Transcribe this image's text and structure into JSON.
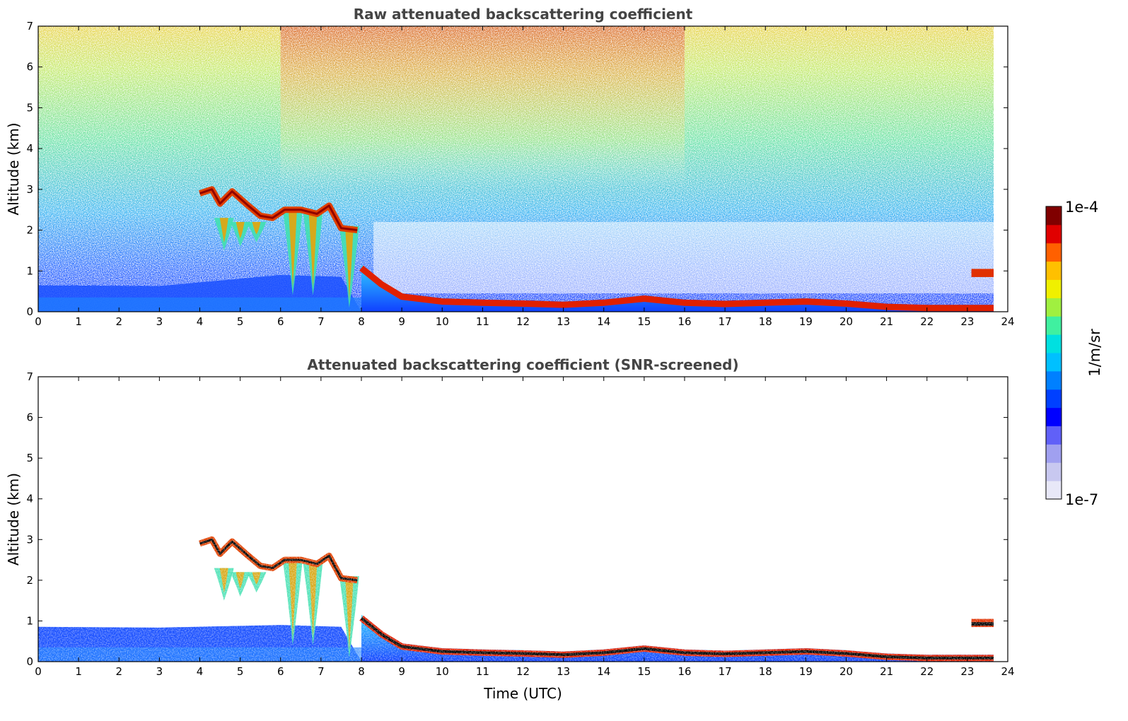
{
  "chart_data": [
    {
      "type": "heatmap",
      "title": "Raw attenuated backscattering coefficient",
      "xlabel": "",
      "ylabel": "Altitude (km)",
      "xlim": [
        0,
        24
      ],
      "ylim": [
        0,
        7
      ],
      "xticks": [
        0,
        1,
        2,
        3,
        4,
        5,
        6,
        7,
        8,
        9,
        10,
        11,
        12,
        13,
        14,
        15,
        16,
        17,
        18,
        19,
        20,
        21,
        22,
        23,
        24
      ],
      "yticks": [
        0,
        1,
        2,
        3,
        4,
        5,
        6,
        7
      ],
      "screened": false,
      "features": {
        "boundary_layer_top_km": [
          [
            8.0,
            1.15
          ],
          [
            8.5,
            0.75
          ],
          [
            9.0,
            0.45
          ],
          [
            10,
            0.33
          ],
          [
            11,
            0.3
          ],
          [
            12,
            0.28
          ],
          [
            13,
            0.25
          ],
          [
            14,
            0.3
          ],
          [
            15,
            0.4
          ],
          [
            16,
            0.3
          ],
          [
            17,
            0.27
          ],
          [
            18,
            0.3
          ],
          [
            19,
            0.33
          ],
          [
            20,
            0.28
          ],
          [
            21,
            0.2
          ],
          [
            22,
            0.17
          ],
          [
            23,
            0.17
          ],
          [
            23.65,
            0.17
          ]
        ],
        "aerosol_layer": {
          "x_start": 0,
          "x_end": 8,
          "top_km": 0.9
        },
        "cloud_layer_km": [
          [
            4.0,
            2.9
          ],
          [
            4.3,
            3.0
          ],
          [
            4.5,
            2.65
          ],
          [
            4.8,
            2.95
          ],
          [
            5.2,
            2.6
          ],
          [
            5.5,
            2.35
          ],
          [
            5.8,
            2.3
          ],
          [
            6.1,
            2.5
          ],
          [
            6.5,
            2.5
          ],
          [
            6.9,
            2.4
          ],
          [
            7.2,
            2.6
          ],
          [
            7.5,
            2.05
          ],
          [
            7.9,
            2.0
          ]
        ],
        "fall_streaks": [
          {
            "x": 4.6,
            "top": 2.3,
            "bottom": 1.5
          },
          {
            "x": 5.0,
            "top": 2.2,
            "bottom": 1.6
          },
          {
            "x": 5.4,
            "top": 2.2,
            "bottom": 1.7
          },
          {
            "x": 6.3,
            "top": 2.5,
            "bottom": 0.4
          },
          {
            "x": 6.8,
            "top": 2.45,
            "bottom": 0.4
          },
          {
            "x": 7.7,
            "top": 2.1,
            "bottom": 0.1
          }
        ],
        "low_cloud": {
          "x_start": 23.1,
          "x_end": 23.65,
          "bottom_km": 0.85,
          "top_km": 1.05
        },
        "data_end_hour": 23.65
      }
    },
    {
      "type": "heatmap",
      "title": "Attenuated backscattering coefficient (SNR-screened)",
      "xlabel": "Time (UTC)",
      "ylabel": "Altitude (km)",
      "xlim": [
        0,
        24
      ],
      "ylim": [
        0,
        7
      ],
      "xticks": [
        0,
        1,
        2,
        3,
        4,
        5,
        6,
        7,
        8,
        9,
        10,
        11,
        12,
        13,
        14,
        15,
        16,
        17,
        18,
        19,
        20,
        21,
        22,
        23,
        24
      ],
      "yticks": [
        0,
        1,
        2,
        3,
        4,
        5,
        6,
        7
      ],
      "screened": true
    }
  ],
  "colorbar": {
    "label": "1/m/sr",
    "max_label": "1e-4",
    "min_label": "1e-7",
    "colors": [
      "#e8e8f8",
      "#c8c8f0",
      "#a0a0f0",
      "#6060f8",
      "#0000ff",
      "#0040ff",
      "#0080ff",
      "#00c0ff",
      "#00e0e0",
      "#40f0a0",
      "#a0f040",
      "#f0f000",
      "#ffc000",
      "#ff6000",
      "#e00000",
      "#800000"
    ]
  }
}
